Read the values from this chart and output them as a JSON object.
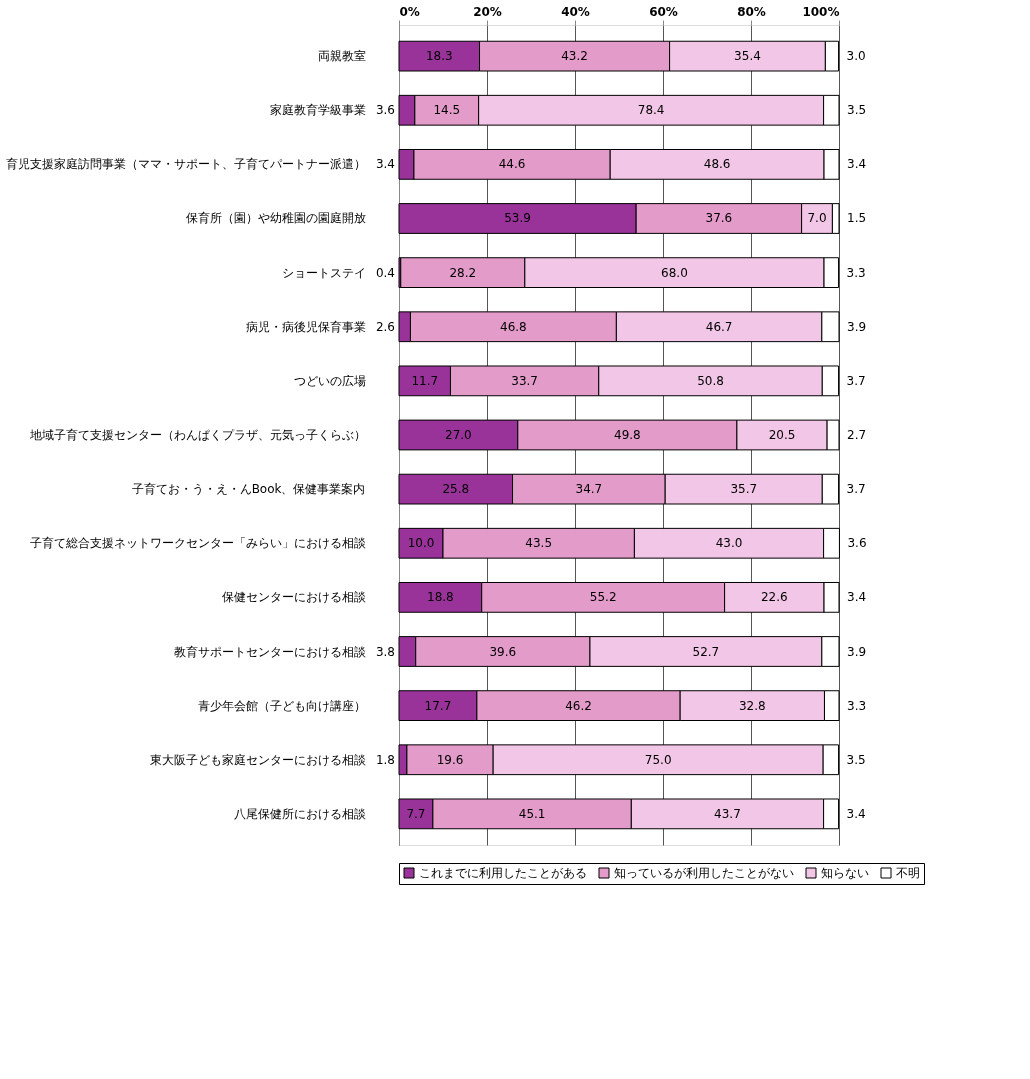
{
  "chart_data": {
    "type": "bar",
    "orientation": "horizontal",
    "stacked": true,
    "categories": [
      "両親教室",
      "家庭教育学級事業",
      "育児支援家庭訪問事業（ママ・サポート、子育てパートナー派遣）",
      "保育所（園）や幼稚園の園庭開放",
      "ショートステイ",
      "病児・病後児保育事業",
      "つどいの広場",
      "地域子育て支援センター（わんぱくプラザ、元気っ子くらぶ）",
      "子育てお・う・え・んBook、保健事業案内",
      "子育て総合支援ネットワークセンター「みらい」における相談",
      "保健センターにおける相談",
      "教育サポートセンターにおける相談",
      "青少年会館（子ども向け講座）",
      "東大阪子ども家庭センターにおける相談",
      "八尾保健所における相談"
    ],
    "series": [
      {
        "name": "これまでに利用したことがある",
        "color": "#993399",
        "values": [
          18.3,
          3.6,
          3.4,
          53.9,
          0.4,
          2.6,
          11.7,
          27.0,
          25.8,
          10.0,
          18.8,
          3.8,
          17.7,
          1.8,
          7.7
        ],
        "value_labels": [
          "18.3",
          "3.6",
          "3.4",
          "53.9",
          "0.4",
          "2.6",
          "11.7",
          "27.0",
          "25.8",
          "10.0",
          "18.8",
          "3.8",
          "17.7",
          "1.8",
          "7.7"
        ]
      },
      {
        "name": "知っているが利用したことがない",
        "color": "#e39bc9",
        "values": [
          43.2,
          14.5,
          44.6,
          37.6,
          28.2,
          46.8,
          33.7,
          49.8,
          34.7,
          43.5,
          55.2,
          39.6,
          46.2,
          19.6,
          45.1
        ],
        "value_labels": [
          "43.2",
          "14.5",
          "44.6",
          "37.6",
          "28.2",
          "46.8",
          "33.7",
          "49.8",
          "34.7",
          "43.5",
          "55.2",
          "39.6",
          "46.2",
          "19.6",
          "45.1"
        ]
      },
      {
        "name": "知らない",
        "color": "#f2c6e6",
        "values": [
          35.4,
          78.4,
          48.6,
          7.0,
          68.0,
          46.7,
          50.8,
          20.5,
          35.7,
          43.0,
          22.6,
          52.7,
          32.8,
          75.0,
          43.7
        ],
        "value_labels": [
          "35.4",
          "78.4",
          "48.6",
          "7.0",
          "68.0",
          "46.7",
          "50.8",
          "20.5",
          "35.7",
          "43.0",
          "22.6",
          "52.7",
          "32.8",
          "75.0",
          "43.7"
        ]
      },
      {
        "name": "不明",
        "color": "#ffffff",
        "values": [
          3.0,
          3.5,
          3.4,
          1.5,
          3.3,
          3.9,
          3.7,
          2.7,
          3.7,
          3.6,
          3.4,
          3.9,
          3.3,
          3.5,
          3.4
        ],
        "value_labels": [
          "3.0",
          "3.5",
          "3.4",
          "1.5",
          "3.3",
          "3.9",
          "3.7",
          "2.7",
          "3.7",
          "3.6",
          "3.4",
          "3.9",
          "3.3",
          "3.5",
          "3.4"
        ]
      }
    ],
    "xlim": [
      0,
      100
    ],
    "xticks": [
      {
        "value": 0,
        "label": "0%"
      },
      {
        "value": 20,
        "label": "20%"
      },
      {
        "value": 40,
        "label": "40%"
      },
      {
        "value": 60,
        "label": "60%"
      },
      {
        "value": 80,
        "label": "80%"
      },
      {
        "value": 100,
        "label": "100%"
      }
    ],
    "grid": "x",
    "legend": "bottom"
  }
}
